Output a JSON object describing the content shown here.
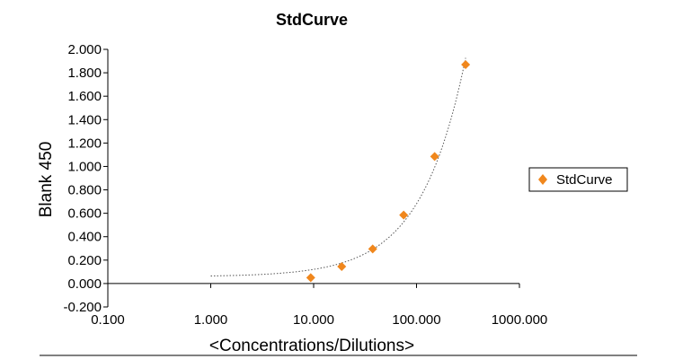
{
  "chart_data": {
    "type": "scatter",
    "title": "StdCurve",
    "xlabel": "<Concentrations/Dilutions>",
    "ylabel": "Blank 450",
    "x_scale": "log",
    "xlim": [
      0.1,
      1000
    ],
    "ylim": [
      -0.2,
      2.0
    ],
    "x_ticks": [
      "0.100",
      "1.000",
      "10.000",
      "100.000",
      "1000.000"
    ],
    "x_tick_values": [
      0.1,
      1,
      10,
      100,
      1000
    ],
    "y_ticks": [
      "-0.200",
      "0.000",
      "0.200",
      "0.400",
      "0.600",
      "0.800",
      "1.000",
      "1.200",
      "1.400",
      "1.600",
      "1.800",
      "2.000"
    ],
    "y_tick_values": [
      -0.2,
      0,
      0.2,
      0.4,
      0.6,
      0.8,
      1.0,
      1.2,
      1.4,
      1.6,
      1.8,
      2.0
    ],
    "grid": false,
    "legend_position": "right",
    "series": [
      {
        "name": "StdCurve",
        "color": "#f0871d",
        "marker": "diamond",
        "x": [
          9.375,
          18.75,
          37.5,
          75,
          150,
          300
        ],
        "y": [
          0.05,
          0.145,
          0.295,
          0.585,
          1.085,
          1.87
        ]
      }
    ],
    "trendline": {
      "color": "#555555",
      "style": "dotted",
      "x_start": 1,
      "x_end": 300
    }
  }
}
